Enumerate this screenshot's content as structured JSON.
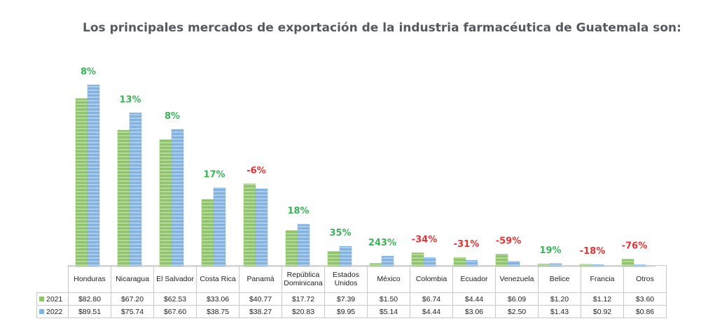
{
  "title": "Los principales mercados de exportación de la industria farmacéutica de Guatemala son:",
  "chart_data": {
    "type": "bar",
    "title": "Los principales mercados de exportación de la industria farmacéutica de Guatemala son:",
    "categories": [
      "Honduras",
      "Nicaragua",
      "El Salvador",
      "Costa Rica",
      "Panamá",
      "República Dominicana",
      "Estados Unidos",
      "México",
      "Colombia",
      "Ecuador",
      "Venezuela",
      "Belice",
      "Francia",
      "Otros"
    ],
    "series": [
      {
        "name": "2021",
        "values": [
          82.8,
          67.2,
          62.53,
          33.06,
          40.77,
          17.72,
          7.39,
          1.5,
          6.74,
          4.44,
          6.09,
          1.2,
          1.12,
          3.6
        ],
        "labels": [
          "$82.80",
          "$67.20",
          "$62.53",
          "$33.06",
          "$40.77",
          "$17.72",
          "$7.39",
          "$1.50",
          "$6.74",
          "$4.44",
          "$6.09",
          "$1.20",
          "$1.12",
          "$3.60"
        ],
        "color": "#8fc46a"
      },
      {
        "name": "2022",
        "values": [
          89.51,
          75.74,
          67.6,
          38.75,
          38.27,
          20.83,
          9.95,
          5.14,
          4.44,
          3.06,
          2.5,
          1.43,
          0.92,
          0.86
        ],
        "labels": [
          "$89.51",
          "$75.74",
          "$67.60",
          "$38.75",
          "$38.27",
          "$20.83",
          "$9.95",
          "$5.14",
          "$4.44",
          "$3.06",
          "$2.50",
          "$1.43",
          "$0.92",
          "$0.86"
        ],
        "color": "#82b2e0"
      }
    ],
    "growth": [
      "8%",
      "13%",
      "8%",
      "17%",
      "-6%",
      "18%",
      "35%",
      "243%",
      "-34%",
      "-31%",
      "-59%",
      "19%",
      "-18%",
      "-76%"
    ],
    "growth_colors": {
      "positive": "#3cb35a",
      "negative": "#e03535"
    },
    "ylim": [
      0,
      100
    ],
    "grid": false,
    "legend": "data-table"
  }
}
